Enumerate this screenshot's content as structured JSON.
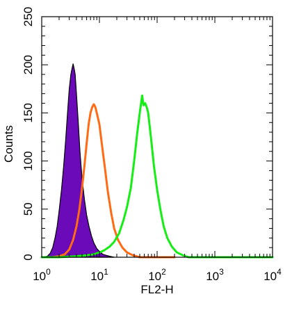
{
  "chart_data": {
    "type": "area",
    "title": "",
    "xlabel": "FL2-H",
    "ylabel": "Counts",
    "xscale": "log",
    "xlim": [
      1,
      10000
    ],
    "ylim": [
      0,
      250
    ],
    "grid": false,
    "legend": "none",
    "x_tick_labels": [
      {
        "value": 1,
        "base": "10",
        "exp": "0"
      },
      {
        "value": 10,
        "base": "10",
        "exp": "1"
      },
      {
        "value": 100,
        "base": "10",
        "exp": "2"
      },
      {
        "value": 1000,
        "base": "10",
        "exp": "3"
      },
      {
        "value": 10000,
        "base": "10",
        "exp": "4"
      }
    ],
    "y_tick_labels": [
      "0",
      "50",
      "100",
      "150",
      "200",
      "250"
    ],
    "series": [
      {
        "style": "filled",
        "color": "#6a0ab8",
        "points": [
          [
            1.0,
            0
          ],
          [
            1.25,
            1
          ],
          [
            1.4,
            4
          ],
          [
            1.55,
            10
          ],
          [
            1.7,
            20
          ],
          [
            1.85,
            32
          ],
          [
            2.0,
            48
          ],
          [
            2.2,
            70
          ],
          [
            2.4,
            95
          ],
          [
            2.6,
            122
          ],
          [
            2.8,
            150
          ],
          [
            3.0,
            175
          ],
          [
            3.2,
            190
          ],
          [
            3.35,
            196
          ],
          [
            3.5,
            201
          ],
          [
            3.65,
            196
          ],
          [
            3.8,
            190
          ],
          [
            4.0,
            170
          ],
          [
            4.3,
            140
          ],
          [
            4.6,
            110
          ],
          [
            5.0,
            82
          ],
          [
            5.5,
            60
          ],
          [
            6.0,
            44
          ],
          [
            6.6,
            32
          ],
          [
            7.3,
            22
          ],
          [
            8.0,
            15
          ],
          [
            9.0,
            9
          ],
          [
            10.0,
            6
          ],
          [
            11.5,
            3
          ],
          [
            13.0,
            2
          ],
          [
            15.0,
            1
          ],
          [
            18.0,
            0
          ]
        ]
      },
      {
        "style": "line",
        "color": "#ff6a13",
        "points": [
          [
            1.0,
            0
          ],
          [
            1.5,
            0
          ],
          [
            2.0,
            1
          ],
          [
            2.5,
            3
          ],
          [
            3.0,
            8
          ],
          [
            3.5,
            18
          ],
          [
            4.0,
            32
          ],
          [
            4.5,
            50
          ],
          [
            5.0,
            72
          ],
          [
            5.5,
            95
          ],
          [
            6.0,
            118
          ],
          [
            6.5,
            138
          ],
          [
            7.0,
            150
          ],
          [
            7.5,
            156
          ],
          [
            8.0,
            159
          ],
          [
            8.5,
            156
          ],
          [
            9.0,
            150
          ],
          [
            10.0,
            138
          ],
          [
            11.0,
            118
          ],
          [
            12.5,
            92
          ],
          [
            14.0,
            68
          ],
          [
            16.0,
            46
          ],
          [
            18.0,
            30
          ],
          [
            21.0,
            18
          ],
          [
            25.0,
            10
          ],
          [
            30.0,
            5
          ],
          [
            38.0,
            2
          ],
          [
            50.0,
            0
          ],
          [
            100.0,
            0
          ],
          [
            200.0,
            0
          ]
        ]
      },
      {
        "style": "line",
        "color": "#14ee14",
        "points": [
          [
            1.0,
            0
          ],
          [
            2.0,
            0
          ],
          [
            4.0,
            1
          ],
          [
            6.0,
            2
          ],
          [
            8.0,
            3
          ],
          [
            10.0,
            5
          ],
          [
            12.0,
            7
          ],
          [
            15.0,
            11
          ],
          [
            18.0,
            16
          ],
          [
            22.0,
            25
          ],
          [
            26.0,
            38
          ],
          [
            30.0,
            52
          ],
          [
            35.0,
            72
          ],
          [
            40.0,
            100
          ],
          [
            45.0,
            128
          ],
          [
            50.0,
            150
          ],
          [
            55.0,
            168
          ],
          [
            58.0,
            158
          ],
          [
            62.0,
            160
          ],
          [
            66.0,
            156
          ],
          [
            70.0,
            150
          ],
          [
            78.0,
            125
          ],
          [
            88.0,
            95
          ],
          [
            100.0,
            70
          ],
          [
            115.0,
            48
          ],
          [
            130.0,
            32
          ],
          [
            150.0,
            20
          ],
          [
            180.0,
            11
          ],
          [
            220.0,
            5
          ],
          [
            280.0,
            2
          ],
          [
            350.0,
            0
          ],
          [
            1000.0,
            0
          ],
          [
            10000.0,
            0
          ]
        ]
      }
    ]
  }
}
